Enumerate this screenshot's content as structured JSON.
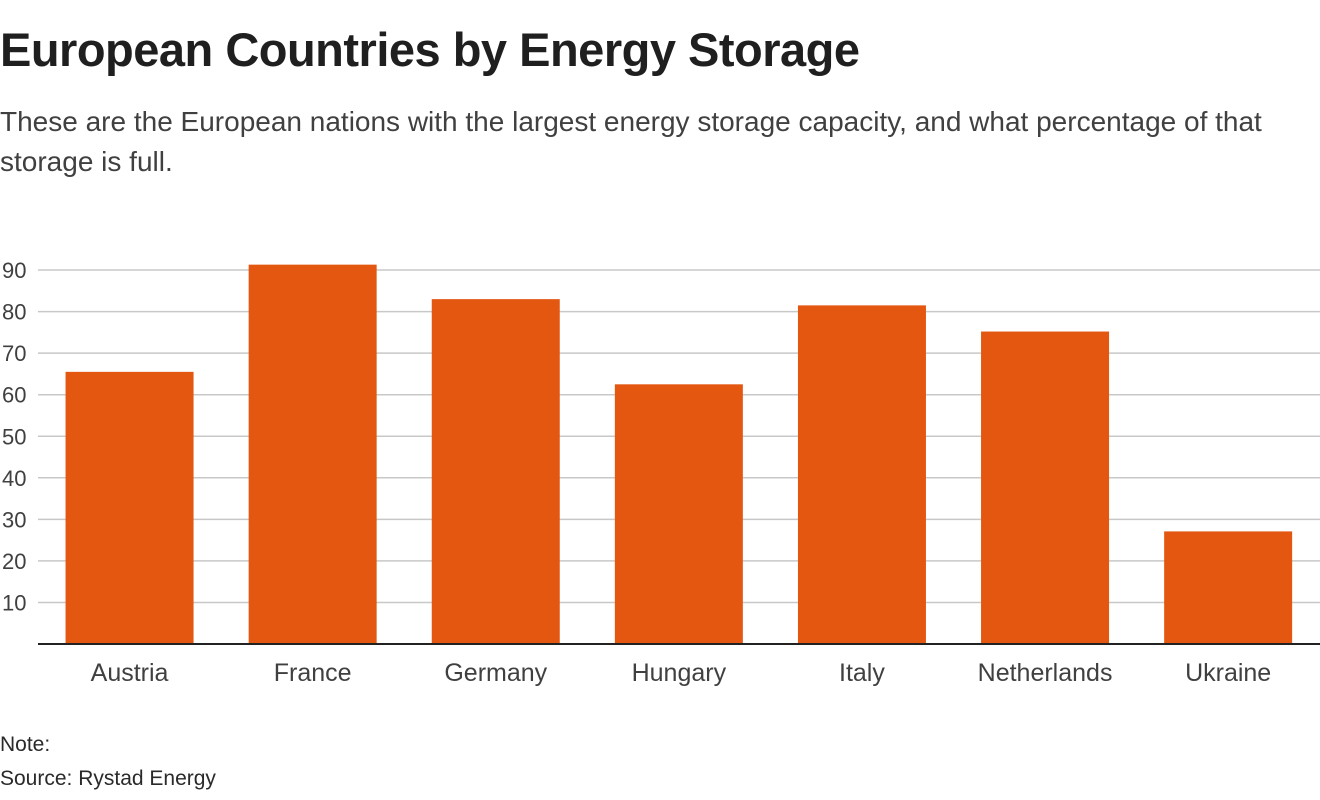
{
  "title": "European Countries by Energy Storage",
  "subtitle": "These are the European nations with the largest energy storage capacity, and what percentage of that storage is full.",
  "note_label": "Note:",
  "source": "Source: Rystad Energy",
  "colors": {
    "bar": "#e35711",
    "grid": "#c8c8c8",
    "axis": "#222222",
    "tick_text": "#404040"
  },
  "chart_data": {
    "type": "bar",
    "categories": [
      "Austria",
      "France",
      "Germany",
      "Hungary",
      "Italy",
      "Netherlands",
      "Ukraine"
    ],
    "values": [
      65.5,
      91.3,
      83,
      62.5,
      81.5,
      75.2,
      27.1
    ],
    "yticks": [
      10,
      20,
      30,
      40,
      50,
      60,
      70,
      80,
      90
    ],
    "ylim": [
      0,
      90
    ],
    "xlabel": "",
    "ylabel": "",
    "grid": true,
    "legend": "none"
  }
}
